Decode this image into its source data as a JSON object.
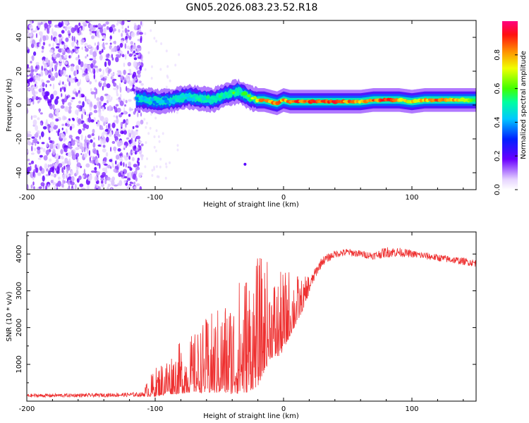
{
  "figure_title": "GN05.2026.083.23.52.R18",
  "chart_data": [
    {
      "type": "heatmap",
      "title": "",
      "xlabel": "Height of straight line (km)",
      "ylabel": "Frequency (Hz)",
      "xlim": [
        -200,
        150
      ],
      "ylim": [
        -50,
        50
      ],
      "xticks": [
        -200,
        -100,
        0,
        100
      ],
      "xtick_labels": [
        "-200",
        "-100",
        "0",
        "100"
      ],
      "yticks": [
        40,
        20,
        0,
        -20,
        -40
      ],
      "ytick_labels": [
        "40",
        "20",
        "0",
        "-20",
        "-40"
      ],
      "noise_region_x": [
        -200,
        -110
      ],
      "colorbar": {
        "label": "Normalized spectral amplitude",
        "range": [
          0,
          1
        ],
        "ticks": [
          0.0,
          0.2,
          0.4,
          0.6,
          0.8
        ],
        "tick_labels": [
          "0.0",
          "0.2",
          "0.4",
          "0.6",
          "0.8"
        ]
      },
      "ridge": {
        "x": [
          -115,
          -105,
          -95,
          -85,
          -75,
          -65,
          -55,
          -45,
          -40,
          -35,
          -30,
          -25,
          -20,
          -15,
          -10,
          -5,
          0,
          5,
          10,
          20,
          30,
          40,
          50,
          60,
          70,
          80,
          90,
          100,
          110,
          120,
          130,
          140,
          150
        ],
        "y": [
          4,
          3,
          2,
          3,
          5,
          4,
          3,
          6,
          7,
          8,
          6,
          4,
          3,
          3,
          2,
          1,
          3,
          2,
          2,
          2,
          2,
          2,
          2,
          2,
          3,
          3,
          3,
          2,
          3,
          3,
          3,
          3,
          3
        ],
        "amplitude": [
          0.45,
          0.5,
          0.5,
          0.55,
          0.55,
          0.55,
          0.6,
          0.6,
          0.65,
          0.6,
          0.65,
          0.7,
          0.85,
          0.9,
          0.9,
          0.95,
          0.85,
          0.9,
          0.95,
          0.95,
          0.95,
          0.95,
          0.9,
          0.8,
          0.9,
          0.95,
          0.85,
          0.8,
          0.85,
          0.95,
          0.9,
          0.75,
          0.7
        ]
      },
      "outliers": [
        {
          "x": -30,
          "y": -35
        }
      ]
    },
    {
      "type": "line",
      "title": "",
      "xlabel": "Height of straight line (km)",
      "ylabel": "SNR (10 * v/v)",
      "xlim": [
        -200,
        150
      ],
      "ylim": [
        0,
        4600
      ],
      "xticks": [
        -200,
        -100,
        0,
        100
      ],
      "xtick_labels": [
        "-200",
        "-100",
        "0",
        "100"
      ],
      "yticks": [
        1000,
        2000,
        3000,
        4000
      ],
      "ytick_labels": [
        "1000",
        "2000",
        "3000",
        "4000"
      ],
      "color": "#ee3030",
      "series": [
        {
          "name": "SNR",
          "x": [
            -200,
            -150,
            -110,
            -100,
            -90,
            -80,
            -70,
            -60,
            -50,
            -40,
            -30,
            -20,
            -15,
            -10,
            -5,
            0,
            5,
            10,
            15,
            20,
            25,
            30,
            40,
            50,
            60,
            70,
            80,
            90,
            100,
            110,
            120,
            130,
            140,
            150
          ],
          "y": [
            150,
            160,
            180,
            350,
            500,
            600,
            700,
            800,
            900,
            1000,
            1200,
            1400,
            1700,
            1900,
            1800,
            2000,
            2300,
            2500,
            2700,
            3100,
            3500,
            3800,
            4000,
            4050,
            4000,
            3950,
            4050,
            4050,
            4000,
            3950,
            3900,
            3850,
            3800,
            3750
          ],
          "spread": [
            100,
            100,
            120,
            500,
            700,
            900,
            1000,
            1300,
            1500,
            1800,
            2200,
            2200,
            2000,
            1600,
            1400,
            1400,
            1200,
            900,
            500,
            400,
            300,
            250,
            200,
            200,
            200,
            200,
            300,
            250,
            200,
            200,
            200,
            200,
            200,
            200
          ]
        }
      ]
    }
  ]
}
